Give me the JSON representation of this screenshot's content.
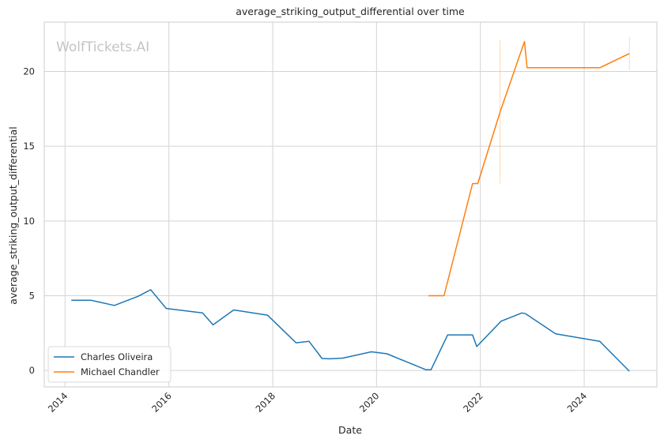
{
  "chart_data": {
    "type": "line",
    "title": "average_striking_output_differential over time",
    "xlabel": "Date",
    "ylabel": "average_striking_output_differential",
    "watermark": "WolfTickets.AI",
    "x_ticks": [
      2014,
      2016,
      2018,
      2020,
      2022,
      2024
    ],
    "y_ticks": [
      0,
      5,
      10,
      15,
      20
    ],
    "xlim": [
      2013.6,
      2025.4
    ],
    "ylim": [
      -1.1,
      23.3
    ],
    "grid": true,
    "legend_position": "lower-left",
    "series": [
      {
        "name": "Charles Oliveira",
        "color": "#1f77b4",
        "points": [
          [
            2014.12,
            4.7
          ],
          [
            2014.5,
            4.7
          ],
          [
            2014.95,
            4.35
          ],
          [
            2015.4,
            4.95
          ],
          [
            2015.65,
            5.4
          ],
          [
            2015.95,
            4.15
          ],
          [
            2016.65,
            3.85
          ],
          [
            2016.85,
            3.05
          ],
          [
            2017.25,
            4.05
          ],
          [
            2017.9,
            3.7
          ],
          [
            2018.45,
            1.85
          ],
          [
            2018.7,
            1.95
          ],
          [
            2018.95,
            0.8
          ],
          [
            2019.1,
            0.78
          ],
          [
            2019.35,
            0.83
          ],
          [
            2019.9,
            1.25
          ],
          [
            2020.2,
            1.12
          ],
          [
            2020.95,
            0.05
          ],
          [
            2021.05,
            0.05
          ],
          [
            2021.37,
            2.38
          ],
          [
            2021.85,
            2.38
          ],
          [
            2021.93,
            1.6
          ],
          [
            2022.4,
            3.3
          ],
          [
            2022.8,
            3.85
          ],
          [
            2022.87,
            3.8
          ],
          [
            2023.45,
            2.45
          ],
          [
            2024.3,
            1.95
          ],
          [
            2024.87,
            -0.05
          ]
        ]
      },
      {
        "name": "Michael Chandler",
        "color": "#ff7f0e",
        "points": [
          [
            2021.0,
            5.0
          ],
          [
            2021.3,
            5.0
          ],
          [
            2021.85,
            12.5
          ],
          [
            2021.95,
            12.5
          ],
          [
            2022.38,
            17.3
          ],
          [
            2022.85,
            22.0
          ],
          [
            2022.9,
            20.25
          ],
          [
            2024.3,
            20.25
          ],
          [
            2024.87,
            21.2
          ]
        ]
      }
    ],
    "error_bars": [
      {
        "series": "Michael Chandler",
        "x": 2022.38,
        "low": 12.5,
        "high": 22.1
      },
      {
        "series": "Michael Chandler",
        "x": 2024.87,
        "low": 20.1,
        "high": 22.3
      }
    ]
  }
}
